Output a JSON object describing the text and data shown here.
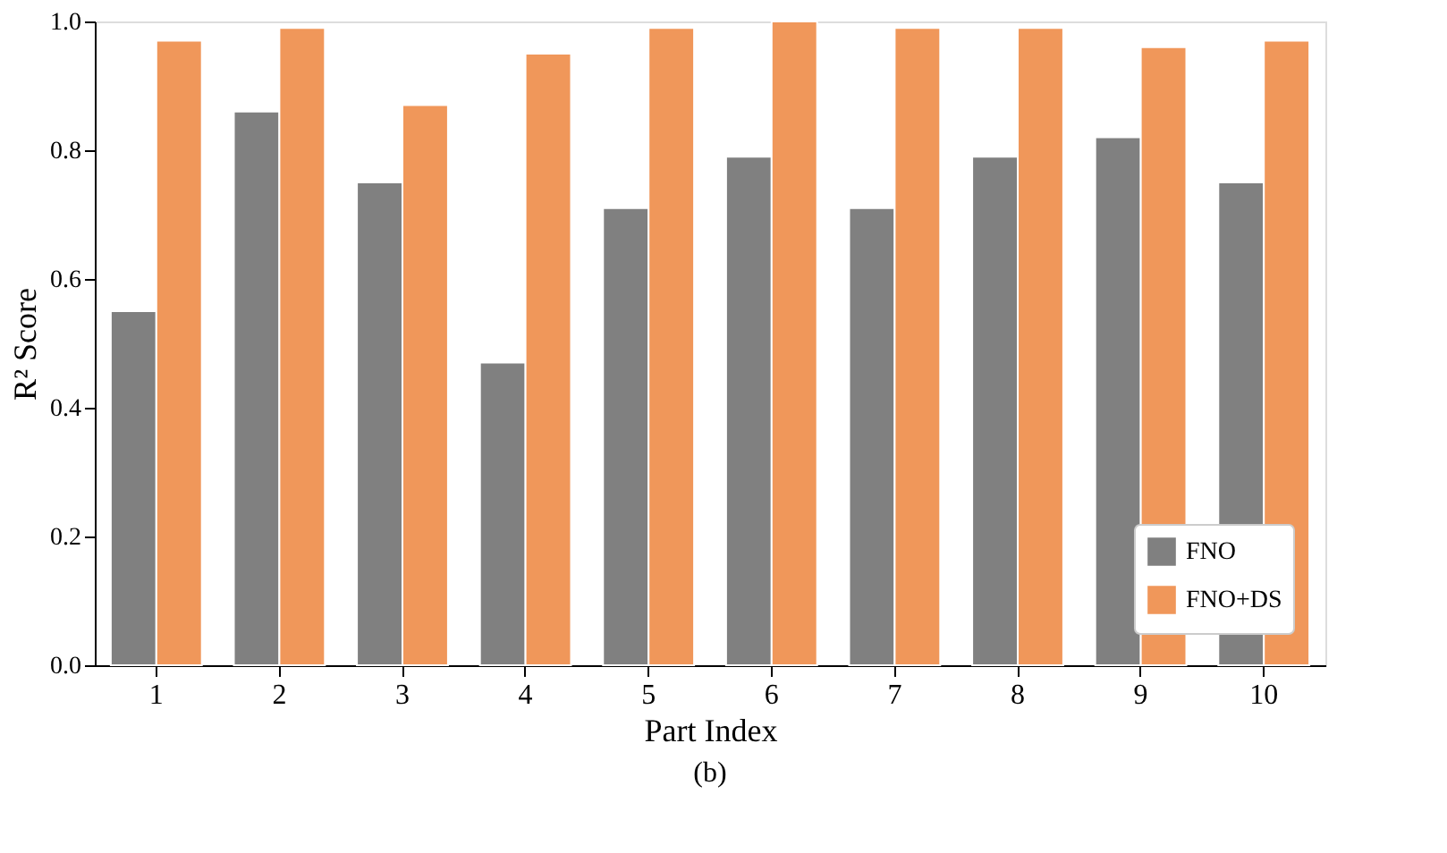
{
  "chart_data": {
    "type": "bar",
    "xlabel": "Part Index",
    "ylabel": "R² Score",
    "categories": [
      "1",
      "2",
      "3",
      "4",
      "5",
      "6",
      "7",
      "8",
      "9",
      "10"
    ],
    "series": [
      {
        "name": "FNO",
        "color": "#808080",
        "values": [
          0.55,
          0.86,
          0.75,
          0.47,
          0.71,
          0.79,
          0.71,
          0.79,
          0.82,
          0.75
        ]
      },
      {
        "name": "FNO+DS",
        "color": "#f0975a",
        "values": [
          0.97,
          0.99,
          0.87,
          0.95,
          0.99,
          1.0,
          0.99,
          0.99,
          0.96,
          0.97
        ]
      }
    ],
    "ylim": [
      0,
      1
    ],
    "yticks": [
      {
        "value": 0,
        "label": "0.0"
      },
      {
        "value": 0.2,
        "label": "0.2"
      },
      {
        "value": 0.4,
        "label": "0.4"
      },
      {
        "value": 0.6,
        "label": "0.6"
      },
      {
        "value": 0.8,
        "label": "0.8"
      },
      {
        "value": 1,
        "label": "1.0"
      }
    ],
    "grid": false,
    "legend": "bottom right",
    "annotations": [
      "(b)"
    ]
  }
}
